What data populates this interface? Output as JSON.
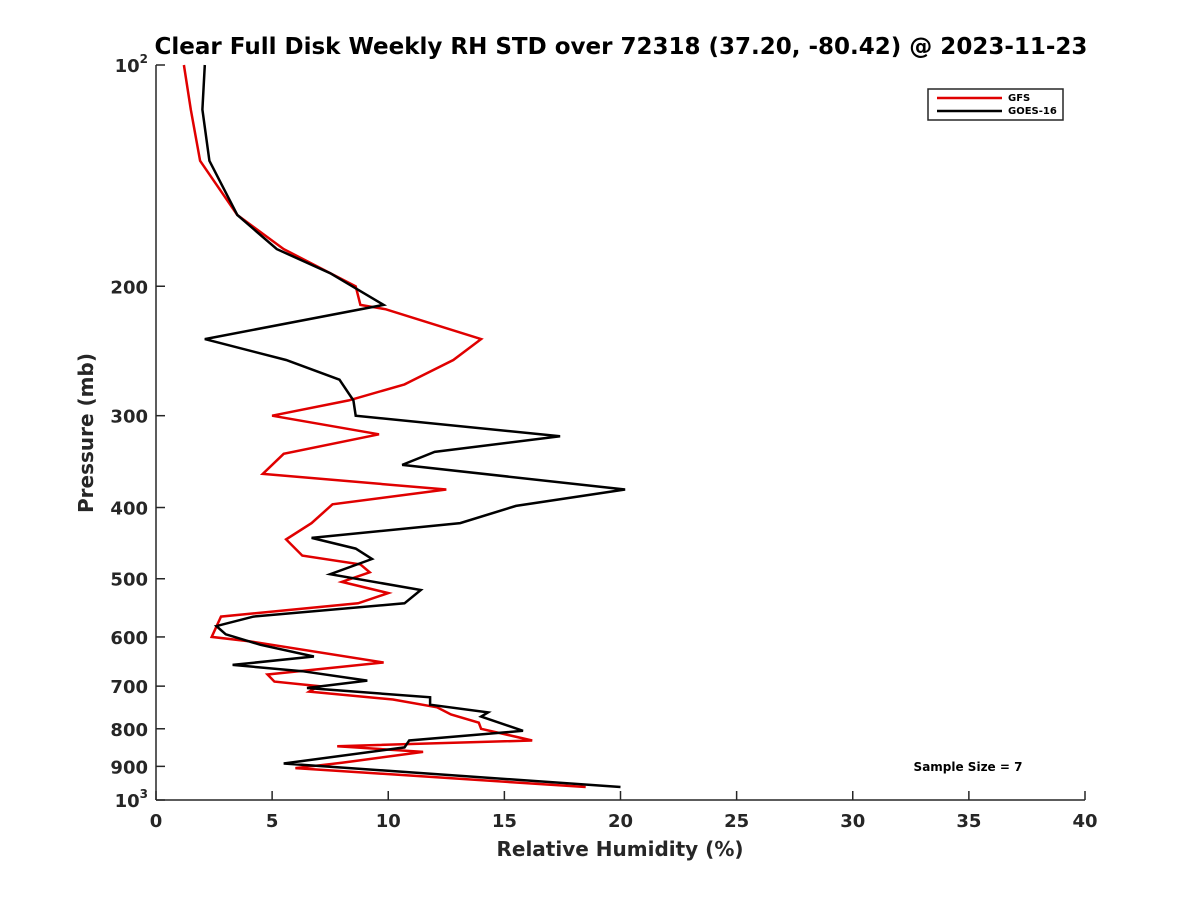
{
  "chart_data": {
    "type": "line",
    "title": "Clear Full Disk Weekly RH STD over 72318 (37.20, -80.42) @ 2023-11-23",
    "xlabel": "Relative Humidity (%)",
    "ylabel": "Pressure (mb)",
    "xlim": [
      0,
      40
    ],
    "ylim": [
      100,
      1000
    ],
    "yscale": "log",
    "y_reversed": true,
    "grid": false,
    "legend_position": "top-right",
    "x_ticks": [
      0,
      5,
      10,
      15,
      20,
      25,
      30,
      35,
      40
    ],
    "y_ticks": [
      100,
      200,
      300,
      400,
      500,
      600,
      700,
      800,
      900,
      1000
    ],
    "y_tick_labels": [
      {
        "base": "10",
        "exp": "2"
      },
      {
        "base": "200"
      },
      {
        "base": "300"
      },
      {
        "base": "400"
      },
      {
        "base": "500"
      },
      {
        "base": "600"
      },
      {
        "base": "700"
      },
      {
        "base": "800"
      },
      {
        "base": "900"
      },
      {
        "base": "10",
        "exp": "3"
      }
    ],
    "annotation": "Sample Size = 7",
    "series": [
      {
        "name": "GFS",
        "color": "#e00000",
        "points": [
          [
            1.2,
            100
          ],
          [
            1.5,
            115
          ],
          [
            1.9,
            135
          ],
          [
            3.5,
            160
          ],
          [
            5.5,
            178
          ],
          [
            8.6,
            200
          ],
          [
            8.8,
            212
          ],
          [
            9.9,
            215
          ],
          [
            14.0,
            236
          ],
          [
            12.8,
            252
          ],
          [
            10.7,
            272
          ],
          [
            8.3,
            286
          ],
          [
            5.0,
            300
          ],
          [
            9.6,
            318
          ],
          [
            5.5,
            338
          ],
          [
            4.6,
            360
          ],
          [
            12.5,
            378
          ],
          [
            7.6,
            396
          ],
          [
            6.7,
            420
          ],
          [
            5.6,
            442
          ],
          [
            6.3,
            465
          ],
          [
            8.8,
            478
          ],
          [
            9.2,
            490
          ],
          [
            8.0,
            505
          ],
          [
            10.0,
            523
          ],
          [
            8.7,
            540
          ],
          [
            2.8,
            563
          ],
          [
            2.4,
            600
          ],
          [
            4.0,
            608
          ],
          [
            9.8,
            650
          ],
          [
            4.8,
            675
          ],
          [
            5.1,
            690
          ],
          [
            7.0,
            700
          ],
          [
            6.6,
            712
          ],
          [
            10.2,
            730
          ],
          [
            12.1,
            748
          ],
          [
            12.7,
            765
          ],
          [
            13.9,
            785
          ],
          [
            14.0,
            800
          ],
          [
            16.2,
            830
          ],
          [
            7.8,
            845
          ],
          [
            11.5,
            860
          ],
          [
            8.0,
            890
          ],
          [
            6.0,
            905
          ],
          [
            18.5,
            960
          ]
        ]
      },
      {
        "name": "GOES-16",
        "color": "#000000",
        "points": [
          [
            2.1,
            100
          ],
          [
            2.0,
            115
          ],
          [
            2.3,
            135
          ],
          [
            3.5,
            160
          ],
          [
            5.2,
            178
          ],
          [
            7.5,
            192
          ],
          [
            9.8,
            212
          ],
          [
            2.1,
            236
          ],
          [
            5.6,
            252
          ],
          [
            7.9,
            268
          ],
          [
            8.5,
            286
          ],
          [
            8.6,
            300
          ],
          [
            17.4,
            320
          ],
          [
            12.0,
            336
          ],
          [
            10.6,
            350
          ],
          [
            20.2,
            378
          ],
          [
            15.5,
            398
          ],
          [
            13.1,
            420
          ],
          [
            6.7,
            440
          ],
          [
            8.6,
            455
          ],
          [
            9.3,
            470
          ],
          [
            7.5,
            493
          ],
          [
            11.4,
            518
          ],
          [
            10.7,
            540
          ],
          [
            4.2,
            563
          ],
          [
            2.6,
            580
          ],
          [
            3.0,
            595
          ],
          [
            4.5,
            615
          ],
          [
            6.8,
            638
          ],
          [
            3.3,
            655
          ],
          [
            6.3,
            668
          ],
          [
            9.1,
            688
          ],
          [
            6.5,
            704
          ],
          [
            11.8,
            725
          ],
          [
            11.8,
            742
          ],
          [
            14.3,
            760
          ],
          [
            14.0,
            770
          ],
          [
            15.8,
            805
          ],
          [
            10.9,
            830
          ],
          [
            10.7,
            848
          ],
          [
            5.5,
            892
          ],
          [
            20.0,
            960
          ]
        ]
      }
    ]
  }
}
